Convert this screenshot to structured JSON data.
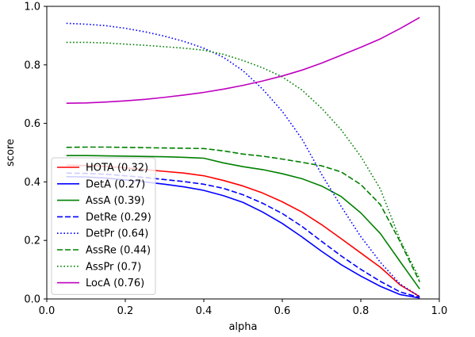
{
  "chart_data": {
    "type": "line",
    "xlabel": "alpha",
    "ylabel": "score",
    "xlim": [
      0.0,
      1.0
    ],
    "ylim": [
      0.0,
      1.0
    ],
    "xticks": [
      "0.0",
      "0.2",
      "0.4",
      "0.6",
      "0.8",
      "1.0"
    ],
    "yticks": [
      "0.0",
      "0.2",
      "0.4",
      "0.6",
      "0.8",
      "1.0"
    ],
    "grid": false,
    "legend_position": "lower-left",
    "x": [
      0.05,
      0.1,
      0.15,
      0.2,
      0.25,
      0.3,
      0.35,
      0.4,
      0.45,
      0.5,
      0.55,
      0.6,
      0.65,
      0.7,
      0.75,
      0.8,
      0.85,
      0.9,
      0.95
    ],
    "series": [
      {
        "name": "HOTA (0.32)",
        "color": "#ff0000",
        "style": "solid",
        "values": [
          0.457,
          0.456,
          0.453,
          0.448,
          0.442,
          0.436,
          0.43,
          0.421,
          0.405,
          0.386,
          0.362,
          0.332,
          0.297,
          0.254,
          0.206,
          0.157,
          0.108,
          0.048,
          0.008
        ]
      },
      {
        "name": "DetA (0.27)",
        "color": "#0000ff",
        "style": "solid",
        "values": [
          0.418,
          0.417,
          0.413,
          0.407,
          0.4,
          0.392,
          0.383,
          0.371,
          0.353,
          0.33,
          0.297,
          0.258,
          0.212,
          0.163,
          0.117,
          0.078,
          0.043,
          0.015,
          0.003
        ]
      },
      {
        "name": "AssA (0.39)",
        "color": "#008000",
        "style": "solid",
        "values": [
          0.49,
          0.49,
          0.489,
          0.488,
          0.487,
          0.486,
          0.484,
          0.481,
          0.465,
          0.452,
          0.442,
          0.428,
          0.411,
          0.386,
          0.35,
          0.294,
          0.223,
          0.128,
          0.034
        ]
      },
      {
        "name": "DetRe (0.29)",
        "color": "#0000ff",
        "style": "dashed",
        "values": [
          0.43,
          0.429,
          0.426,
          0.421,
          0.415,
          0.408,
          0.401,
          0.392,
          0.378,
          0.356,
          0.327,
          0.292,
          0.248,
          0.197,
          0.147,
          0.101,
          0.06,
          0.024,
          0.005
        ]
      },
      {
        "name": "DetPr (0.64)",
        "color": "#0000ff",
        "style": "dotted",
        "values": [
          0.942,
          0.939,
          0.934,
          0.925,
          0.913,
          0.898,
          0.88,
          0.857,
          0.826,
          0.78,
          0.717,
          0.641,
          0.547,
          0.426,
          0.316,
          0.213,
          0.125,
          0.051,
          0.008
        ]
      },
      {
        "name": "AssRe (0.44)",
        "color": "#008000",
        "style": "dashed",
        "values": [
          0.518,
          0.519,
          0.519,
          0.518,
          0.517,
          0.516,
          0.515,
          0.514,
          0.506,
          0.495,
          0.488,
          0.478,
          0.467,
          0.455,
          0.434,
          0.391,
          0.322,
          0.196,
          0.058
        ]
      },
      {
        "name": "AssPr (0.7)",
        "color": "#008000",
        "style": "dotted",
        "values": [
          0.877,
          0.877,
          0.875,
          0.871,
          0.867,
          0.862,
          0.857,
          0.85,
          0.836,
          0.815,
          0.79,
          0.759,
          0.714,
          0.652,
          0.578,
          0.487,
          0.375,
          0.202,
          0.068
        ]
      },
      {
        "name": "LocA (0.76)",
        "color": "#bf00bf",
        "style": "solid",
        "values": [
          0.669,
          0.67,
          0.673,
          0.677,
          0.682,
          0.689,
          0.697,
          0.706,
          0.717,
          0.73,
          0.745,
          0.762,
          0.782,
          0.806,
          0.833,
          0.86,
          0.889,
          0.924,
          0.962
        ]
      }
    ]
  }
}
